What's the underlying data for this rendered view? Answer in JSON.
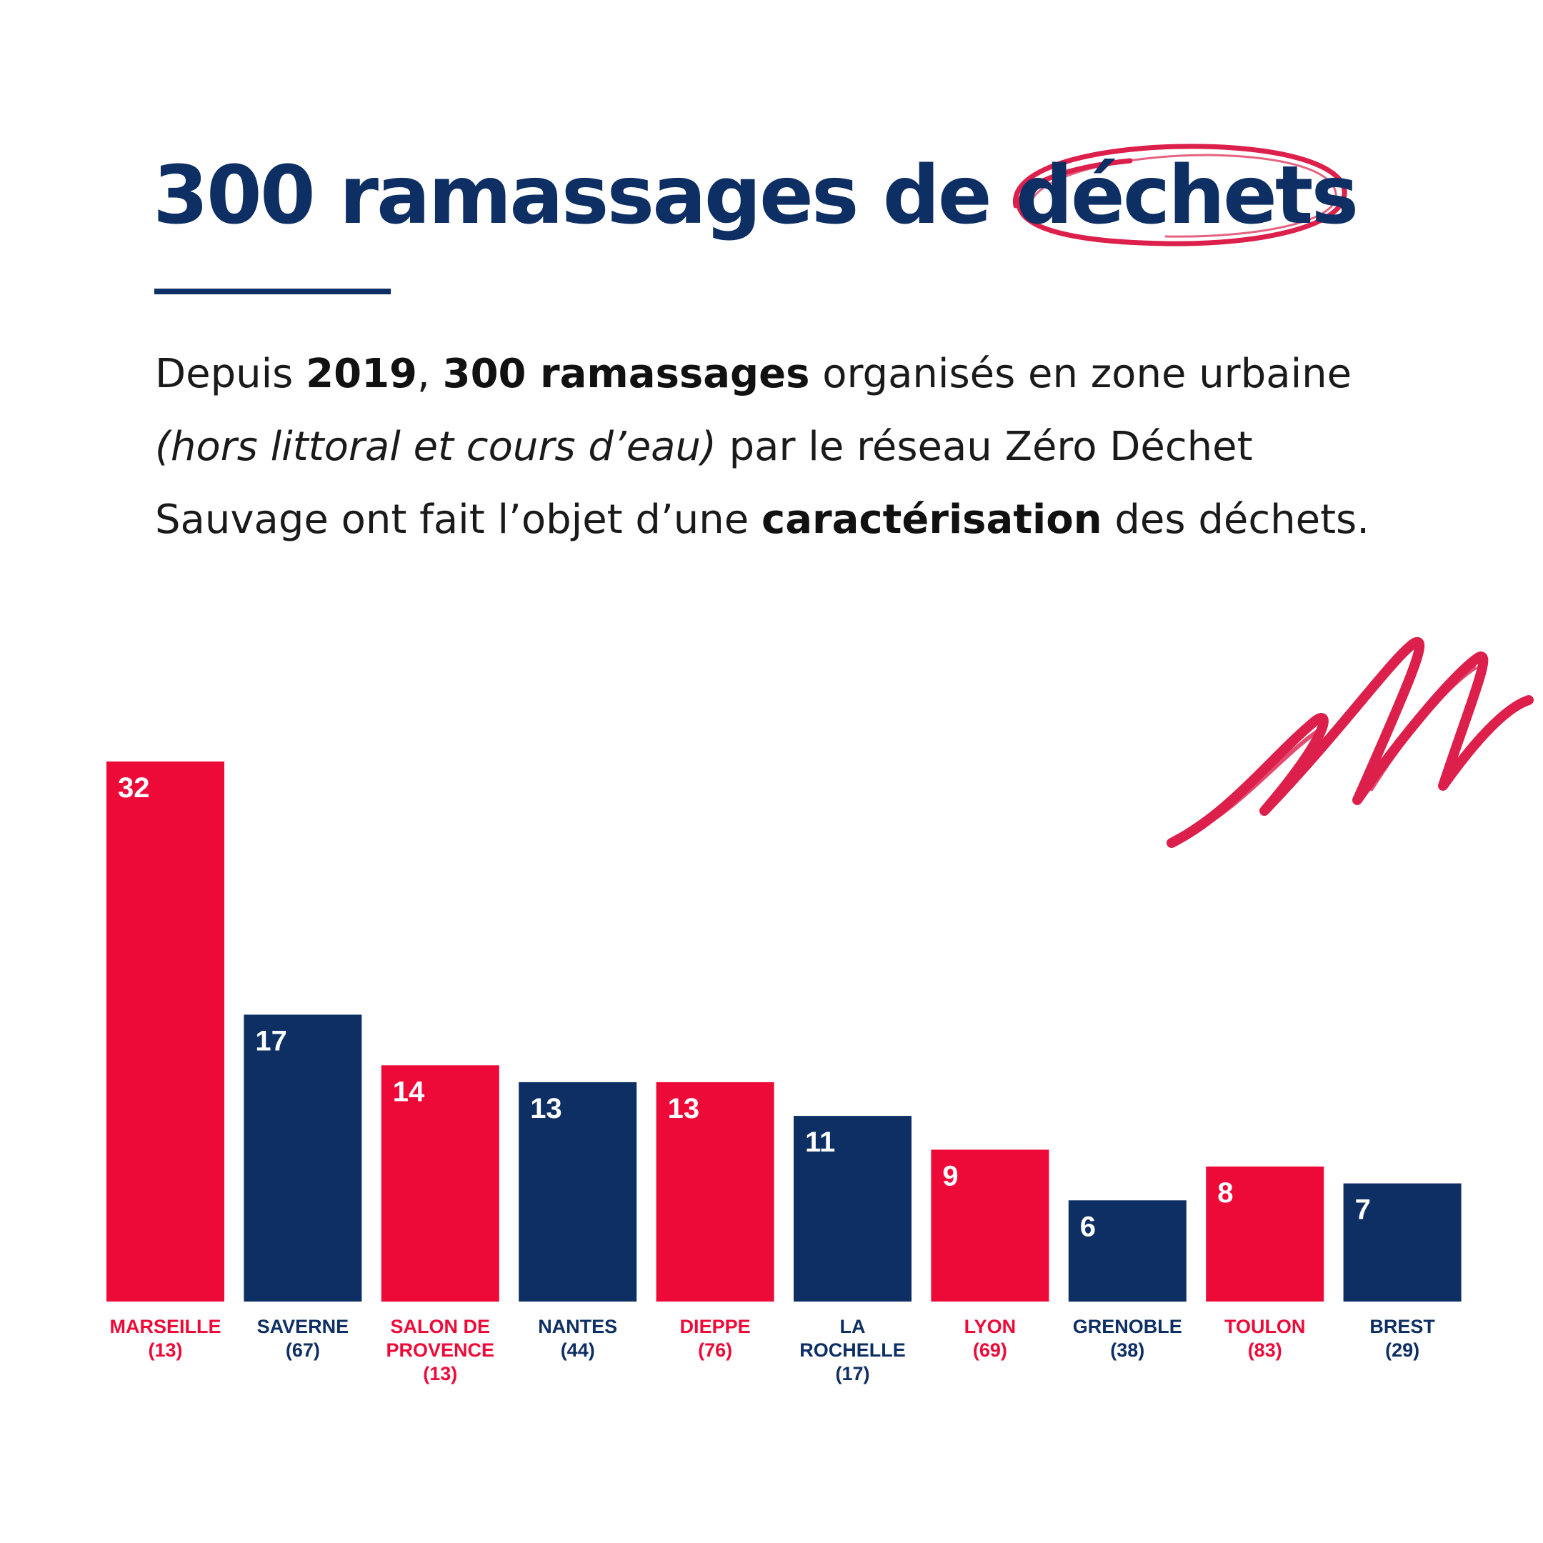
{
  "heading": {
    "title_main": "300 ramassages de ",
    "title_highlight": "déchets"
  },
  "paragraph": {
    "p1": "Depuis ",
    "year": "2019",
    "p2": ", ",
    "count": "300 ramassages",
    "p3": " organisés en zone urbaine ",
    "aside": "(hors littoral et cours d’eau)",
    "p4": " par le réseau Zéro Déchet Sauvage ont fait l’objet d’une ",
    "keyword": "caractérisation",
    "p5": " des déchets."
  },
  "colors": {
    "navy": "#0e2f63",
    "red": "#ee0a38",
    "scribble_red": "#dc1f4b"
  },
  "decorations": {
    "circle": "red-hand-drawn-circle",
    "scribble": "red-zigzag-scribble"
  },
  "chart_data": {
    "type": "bar",
    "categories": [
      [
        "MARSEILLE",
        "(13)"
      ],
      [
        "SAVERNE",
        "(67)"
      ],
      [
        "SALON DE",
        "PROVENCE",
        "(13)"
      ],
      [
        "NANTES",
        "(44)"
      ],
      [
        "DIEPPE",
        "(76)"
      ],
      [
        "LA",
        "ROCHELLE",
        "(17)"
      ],
      [
        "LYON",
        "(69)"
      ],
      [
        "GRENOBLE",
        "(38)"
      ],
      [
        "TOULON",
        "(83)"
      ],
      [
        "BREST",
        "(29)"
      ]
    ],
    "values": [
      32,
      17,
      14,
      13,
      13,
      11,
      9,
      6,
      8,
      7
    ],
    "bar_colors": [
      "red",
      "navy",
      "red",
      "navy",
      "red",
      "navy",
      "red",
      "navy",
      "red",
      "navy"
    ],
    "ylim": [
      0,
      32
    ],
    "grid": false,
    "legend": "none",
    "data_labels": true,
    "title": "",
    "xlabel": "",
    "ylabel": ""
  }
}
